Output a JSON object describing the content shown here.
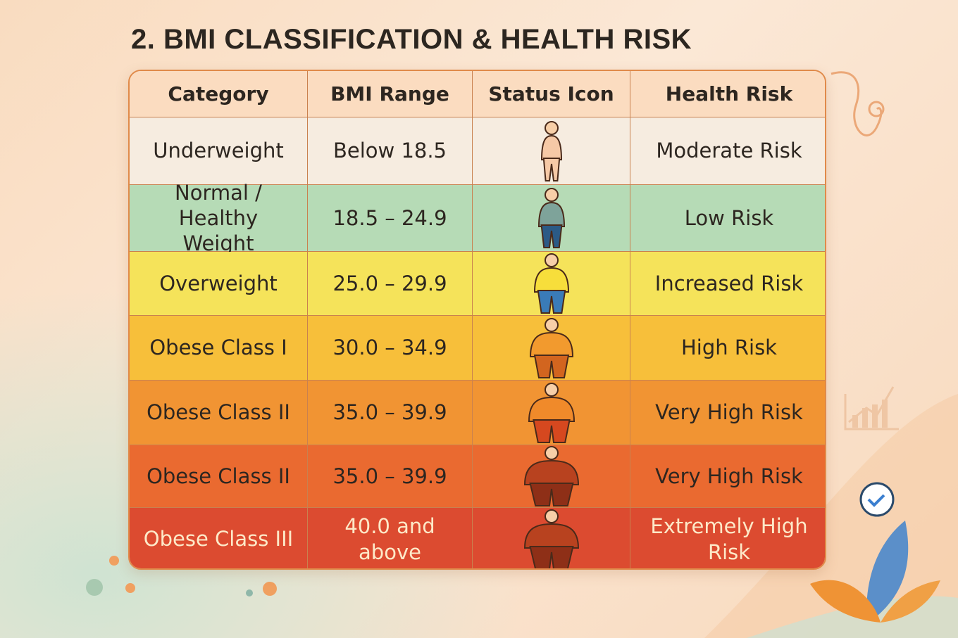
{
  "title": "2. BMI CLASSIFICATION & HEALTH RISK",
  "table": {
    "headers": [
      "Category",
      "BMI Range",
      "Status Icon",
      "Health Risk"
    ],
    "rows": [
      [
        "Underweight",
        "Below 18.5",
        "Moderate Risk"
      ],
      [
        "Normal / Healthy Weight",
        "18.5 – 24.9",
        "Low Risk"
      ],
      [
        "Overweight",
        "25.0 – 29.9",
        "Increased Risk"
      ],
      [
        "Obese Class I",
        "30.0 – 34.9",
        "High Risk"
      ],
      [
        "Obese Class II",
        "35.0 – 39.9",
        "Very High Risk"
      ],
      [
        "Obese Class II",
        "35.0 – 39.9",
        "Very High Risk"
      ],
      [
        "Obese Class III",
        "40.0 and above",
        "Extremely High Risk"
      ]
    ]
  }
}
